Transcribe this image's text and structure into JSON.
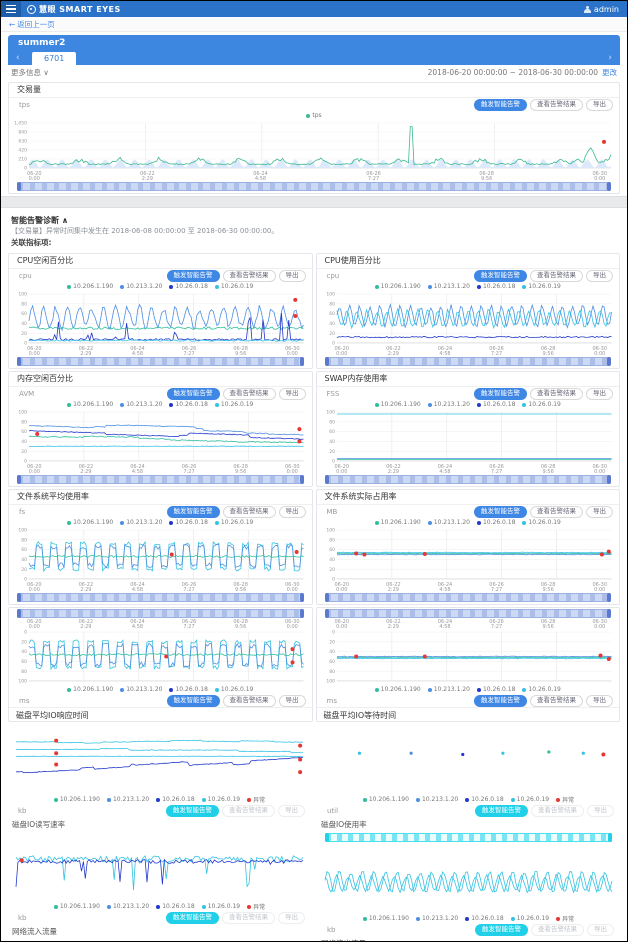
{
  "navbar": {
    "brand": "慧眼 SMART EYES",
    "user": "admin"
  },
  "breadcrumb": {
    "back": "返回上一页"
  },
  "group": {
    "title": "summer2",
    "tab": "6701",
    "prev": "‹",
    "next": "›"
  },
  "infobar": {
    "more": "更多信息 ∨",
    "range": "2018-06-20 00:00:00 ~ 2018-06-30 00:00:00",
    "change": "更改"
  },
  "buttons": {
    "trigger": "触发智能告警",
    "view": "查看告警结果",
    "export": "导出"
  },
  "tx": {
    "title": "交易量",
    "sub": "tps",
    "legend": "tps"
  },
  "alert": {
    "title": "智能告警诊断 ∧",
    "body": "【交易量】异常时间集中发生在 2018-06-08 00:00:00 至 2018-06-30 00:00:00。",
    "related": "关联指标项:"
  },
  "hosts": [
    "10.206.1.190",
    "10.213.1.20",
    "10.26.0.18",
    "10.26.0.19"
  ],
  "legend_extra": "异常",
  "xlabels": [
    [
      "06-20",
      "0:00"
    ],
    [
      "06-22",
      "2:29"
    ],
    [
      "06-24",
      "4:58"
    ],
    [
      "06-26",
      "7:27"
    ],
    [
      "06-28",
      "9:56"
    ],
    [
      "06-30",
      "0:00"
    ]
  ],
  "palette": {
    "teal": "#2fbf9e",
    "blue": "#4e8fe2",
    "navy": "#2338cc",
    "cyan": "#34c3e2",
    "green": "#3cba92",
    "red": "#e83632",
    "area": "#dce9fa"
  },
  "host_dot_colors": [
    "teal",
    "blue",
    "navy",
    "cyan"
  ],
  "panels": [
    {
      "title": "CPU空闲百分比",
      "sub": "cpu",
      "chart": "cpuL"
    },
    {
      "title": "CPU使用百分比",
      "sub": "cpu",
      "chart": "cpuR"
    },
    {
      "title": "内存空闲百分比",
      "sub": "AVM",
      "chart": "memL"
    },
    {
      "title": "SWAP内存使用率",
      "sub": "FSS",
      "chart": "swapR"
    },
    {
      "title": "文件系统平均使用率",
      "sub": "fs",
      "chart": "fsL"
    },
    {
      "title": "文件系统实际占用率",
      "sub": "MB",
      "chart": "fsR"
    },
    {
      "title": "磁盘平均IO响应时间",
      "sub": "ms",
      "chart": "fsLm",
      "mirror": true
    },
    {
      "title": "磁盘平均IO等待时间",
      "sub": "ms",
      "chart": "fsRm",
      "mirror": true
    }
  ],
  "bottom_blocks": [
    {
      "title": "磁盘IO读写速率",
      "sub": "kb",
      "chart": "ioSteps"
    },
    {
      "title": "磁盘IO使用率",
      "sub": "util",
      "chart": "scatterB"
    },
    {
      "title": "网络流入流量",
      "sub": "kb",
      "chart": "netIn"
    },
    {
      "title": "网络流出流量",
      "sub": "kb",
      "chart": "netOut",
      "top_slider": true
    }
  ],
  "charts": {
    "tx": {
      "n": 320,
      "yticks": [
        "1,050",
        "840",
        "630",
        "420",
        "210",
        "0"
      ],
      "series": [
        {
          "kind": "wave",
          "base": 0.1,
          "amp": 0.09,
          "per": 8,
          "noise": 0.02,
          "color": "area",
          "fill": true
        },
        {
          "kind": "tx",
          "color": "green"
        }
      ],
      "red": [
        [
          0.988,
          0.42
        ]
      ]
    },
    "cpuL": {
      "yticks": [
        "100",
        "80",
        "60",
        "40",
        "20",
        "0"
      ],
      "series": [
        {
          "kind": "osc",
          "base": 0.52,
          "amp": 0.2,
          "per": 6.5,
          "noise": 0.14,
          "color": "blue"
        },
        {
          "kind": "flatn",
          "base": 0.3,
          "noise": 0.05,
          "color": "teal"
        },
        {
          "kind": "spiky",
          "base": 0.07,
          "amp": 0.55,
          "noise": 0.04,
          "color": "navy"
        },
        {
          "kind": "flatn",
          "base": 0.05,
          "noise": 0.03,
          "color": "cyan"
        }
      ],
      "red": [
        [
          0.97,
          0.12
        ],
        [
          0.97,
          0.45
        ]
      ]
    },
    "cpuR": {
      "yticks": [
        "100",
        "80",
        "60",
        "40",
        "20",
        "0"
      ],
      "series": [
        {
          "kind": "osc",
          "base": 0.55,
          "amp": 0.2,
          "per": 5.5,
          "noise": 0.08,
          "color": "blue"
        },
        {
          "kind": "osc",
          "base": 0.5,
          "amp": 0.16,
          "per": 5.5,
          "ph": 1.8,
          "noise": 0.08,
          "color": "cyan"
        },
        {
          "kind": "flatn",
          "base": 0.12,
          "noise": 0.03,
          "color": "navy"
        }
      ],
      "red": []
    },
    "memL": {
      "yticks": [
        "100",
        "80",
        "60",
        "40",
        "20",
        "0"
      ],
      "series": [
        {
          "kind": "steps",
          "base": 0.72,
          "amp": 0.08,
          "drift": -0.0008,
          "noise": 0.015,
          "color": "blue"
        },
        {
          "kind": "steps",
          "base": 0.62,
          "amp": 0.1,
          "drift": -0.0012,
          "noise": 0.015,
          "color": "navy"
        },
        {
          "kind": "steps",
          "base": 0.5,
          "amp": 0.06,
          "drift": -0.0006,
          "noise": 0.02,
          "color": "teal"
        },
        {
          "kind": "flatn",
          "base": 0.3,
          "noise": 0.01,
          "color": "cyan"
        }
      ],
      "red": [
        [
          0.03,
          0.45
        ],
        [
          0.985,
          0.35
        ],
        [
          0.985,
          0.6
        ]
      ]
    },
    "swapR": {
      "yticks": [
        "100",
        "80",
        "60",
        "40",
        "20",
        "0"
      ],
      "series": [
        {
          "kind": "flat",
          "base": 0.96,
          "color": "cyan"
        },
        {
          "kind": "flat",
          "base": 0.05,
          "color": "blue"
        },
        {
          "kind": "flat",
          "base": 0.03,
          "color": "teal"
        }
      ],
      "red": []
    },
    "fsL": {
      "yticks": [
        "100",
        "80",
        "60",
        "40",
        "20",
        "0"
      ],
      "series": [
        {
          "kind": "zig",
          "hi": 0.72,
          "lo": 0.2,
          "per": 4,
          "noise": 0.08,
          "color": "cyan"
        },
        {
          "kind": "zig",
          "hi": 0.66,
          "lo": 0.28,
          "per": 4,
          "noise": 0.1,
          "color": "blue"
        },
        {
          "kind": "flatn",
          "base": 0.46,
          "noise": 0.04,
          "color": "teal"
        }
      ],
      "red": [
        [
          0.52,
          0.5
        ],
        [
          0.975,
          0.45
        ]
      ]
    },
    "fsR": {
      "yticks": [
        "100",
        "80",
        "60",
        "40",
        "20",
        "0"
      ],
      "series": [
        {
          "kind": "flatn",
          "base": 0.52,
          "noise": 0.015,
          "color": "teal"
        },
        {
          "kind": "flatn",
          "base": 0.5,
          "noise": 0.015,
          "color": "blue"
        },
        {
          "kind": "flatn",
          "base": 0.54,
          "noise": 0.015,
          "color": "cyan"
        }
      ],
      "red": [
        [
          0.07,
          0.48
        ],
        [
          0.1,
          0.5
        ],
        [
          0.32,
          0.49
        ],
        [
          0.965,
          0.5
        ],
        [
          0.99,
          0.44
        ]
      ]
    },
    "fsLm": {
      "mirror": true,
      "yticks": [
        "0",
        "20",
        "40",
        "60",
        "80",
        "100"
      ],
      "series": [
        {
          "kind": "zig",
          "hi": 0.72,
          "lo": 0.2,
          "per": 4,
          "noise": 0.08,
          "color": "cyan"
        },
        {
          "kind": "zig",
          "hi": 0.66,
          "lo": 0.28,
          "per": 4,
          "noise": 0.1,
          "color": "blue"
        },
        {
          "kind": "flatn",
          "base": 0.46,
          "noise": 0.04,
          "color": "teal"
        }
      ],
      "red": [
        [
          0.5,
          0.5
        ],
        [
          0.96,
          0.35
        ],
        [
          0.96,
          0.62
        ]
      ]
    },
    "fsRm": {
      "mirror": true,
      "yticks": [
        "0",
        "20",
        "40",
        "60",
        "80",
        "100"
      ],
      "series": [
        {
          "kind": "flatn",
          "base": 0.52,
          "noise": 0.015,
          "color": "teal"
        },
        {
          "kind": "flatn",
          "base": 0.5,
          "noise": 0.015,
          "color": "blue"
        },
        {
          "kind": "flatn",
          "base": 0.54,
          "noise": 0.015,
          "color": "cyan"
        }
      ],
      "red": [
        [
          0.07,
          0.5
        ],
        [
          0.32,
          0.5
        ],
        [
          0.96,
          0.48
        ],
        [
          0.99,
          0.55
        ]
      ]
    },
    "ioSteps": {
      "grid": false,
      "series": [
        {
          "kind": "steps",
          "base": 0.78,
          "amp": 0.03,
          "noise": 0.008,
          "color": "cyan"
        },
        {
          "kind": "steps",
          "base": 0.66,
          "amp": 0.05,
          "noise": 0.01,
          "color": "cyan"
        },
        {
          "kind": "flatn",
          "base": 0.55,
          "noise": 0.008,
          "color": "cyan"
        },
        {
          "kind": "steps",
          "base": 0.3,
          "amp": 0.12,
          "drift": 0.002,
          "noise": 0.01,
          "color": "navy"
        }
      ],
      "red": [
        [
          0.14,
          0.2
        ],
        [
          0.14,
          0.4
        ],
        [
          0.14,
          0.58
        ],
        [
          0.99,
          0.28
        ],
        [
          0.99,
          0.5
        ],
        [
          0.99,
          0.7
        ]
      ]
    },
    "scatterB": {
      "grid": false,
      "series": [],
      "scatter": [
        [
          0.12,
          0.4,
          "cyan"
        ],
        [
          0.3,
          0.4,
          "blue"
        ],
        [
          0.48,
          0.42,
          "navy"
        ],
        [
          0.62,
          0.4,
          "cyan"
        ],
        [
          0.78,
          0.38,
          "teal"
        ],
        [
          0.9,
          0.4,
          "cyan"
        ]
      ],
      "red": [
        [
          0.97,
          0.42
        ]
      ]
    },
    "netIn": {
      "grid": false,
      "series": [
        {
          "kind": "spiky",
          "base": 0.62,
          "amp": -0.5,
          "noise": 0.1,
          "color": "cyan"
        },
        {
          "kind": "spiky",
          "base": 0.58,
          "amp": -0.55,
          "noise": 0.06,
          "color": "navy"
        }
      ],
      "red": [
        [
          0.02,
          0.4
        ]
      ]
    },
    "netOut": {
      "grid": false,
      "series": [
        {
          "kind": "wave",
          "base": 0.45,
          "amp": 0.16,
          "per": 6,
          "noise": 0.05,
          "color": "cyan"
        },
        {
          "kind": "wave",
          "base": 0.42,
          "amp": 0.12,
          "per": 6,
          "ph": 1.5,
          "noise": 0.05,
          "color": "cyan"
        }
      ],
      "red": []
    }
  }
}
